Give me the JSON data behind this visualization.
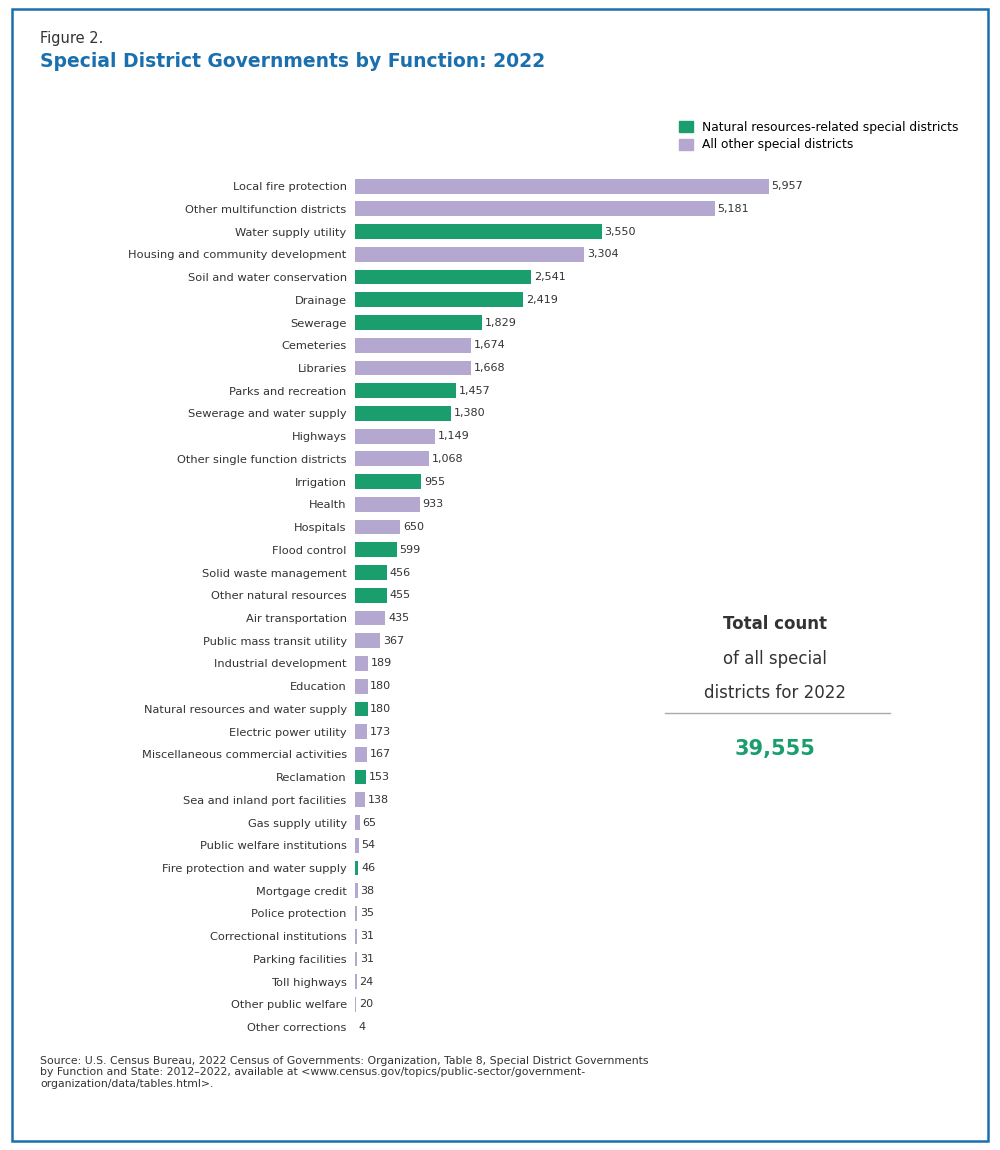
{
  "title_line1": "Figure 2.",
  "title_line2": "Special District Governments by Function: 2022",
  "title_color": "#1a6faf",
  "title_line1_color": "#333333",
  "green_color": "#1a9e6e",
  "purple_color": "#b5a8d0",
  "legend_green": "Natural resources-related special districts",
  "legend_purple": "All other special districts",
  "total_count_value": "39,555",
  "total_count_color": "#1a9e6e",
  "source_text": "Source: U.S. Census Bureau, 2022 Census of Governments: Organization, Table 8, Special District Governments\nby Function and State: 2012–2022, available at <www.census.gov/topics/public-sector/government-\norganization/data/tables.html>.",
  "categories": [
    "Local fire protection",
    "Other multifunction districts",
    "Water supply utility",
    "Housing and community development",
    "Soil and water conservation",
    "Drainage",
    "Sewerage",
    "Cemeteries",
    "Libraries",
    "Parks and recreation",
    "Sewerage and water supply",
    "Highways",
    "Other single function districts",
    "Irrigation",
    "Health",
    "Hospitals",
    "Flood control",
    "Solid waste management",
    "Other natural resources",
    "Air transportation",
    "Public mass transit utility",
    "Industrial development",
    "Education",
    "Natural resources and water supply",
    "Electric power utility",
    "Miscellaneous commercial activities",
    "Reclamation",
    "Sea and inland port facilities",
    "Gas supply utility",
    "Public welfare institutions",
    "Fire protection and water supply",
    "Mortgage credit",
    "Police protection",
    "Correctional institutions",
    "Parking facilities",
    "Toll highways",
    "Other public welfare",
    "Other corrections"
  ],
  "values": [
    5957,
    5181,
    3550,
    3304,
    2541,
    2419,
    1829,
    1674,
    1668,
    1457,
    1380,
    1149,
    1068,
    955,
    933,
    650,
    599,
    456,
    455,
    435,
    367,
    189,
    180,
    180,
    173,
    167,
    153,
    138,
    65,
    54,
    46,
    38,
    35,
    31,
    31,
    24,
    20,
    4
  ],
  "colors": [
    "purple",
    "purple",
    "green",
    "purple",
    "green",
    "green",
    "green",
    "purple",
    "purple",
    "green",
    "green",
    "purple",
    "purple",
    "green",
    "purple",
    "purple",
    "green",
    "green",
    "green",
    "purple",
    "purple",
    "purple",
    "purple",
    "green",
    "purple",
    "purple",
    "green",
    "purple",
    "purple",
    "purple",
    "green",
    "purple",
    "purple",
    "purple",
    "purple",
    "purple",
    "purple",
    "purple"
  ],
  "background_color": "#ffffff",
  "border_color": "#1a6faf"
}
